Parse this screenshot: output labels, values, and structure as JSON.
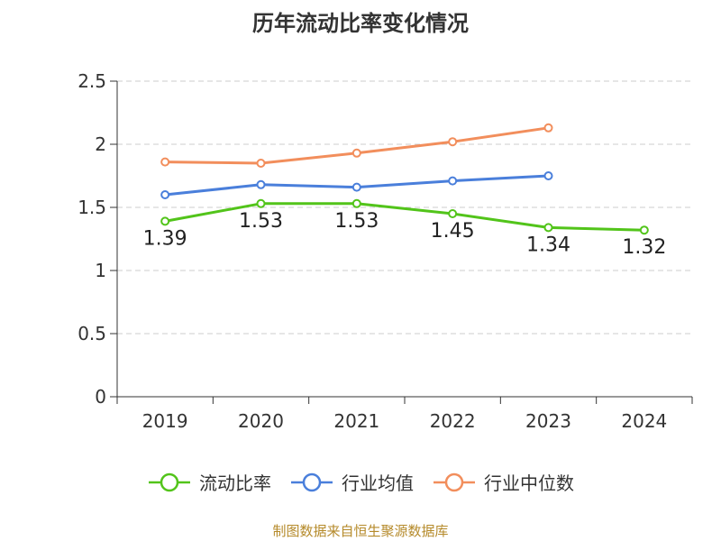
{
  "chart_data": {
    "type": "line",
    "title": "历年流动比率变化情况",
    "categories": [
      "2019",
      "2020",
      "2021",
      "2022",
      "2023",
      "2024"
    ],
    "ylim": [
      0,
      2.5
    ],
    "yticks": [
      0,
      0.5,
      1,
      1.5,
      2,
      2.5
    ],
    "ytick_labels": [
      "0",
      "0.5",
      "1",
      "1.5",
      "2",
      "2.5"
    ],
    "grid": true,
    "legend_position": "bottom",
    "series": [
      {
        "name": "流动比率",
        "color": "#52c41a",
        "values": [
          1.39,
          1.53,
          1.53,
          1.45,
          1.34,
          1.32
        ],
        "labels": [
          "1.39",
          "1.53",
          "1.53",
          "1.45",
          "1.34",
          "1.32"
        ],
        "show_labels": true
      },
      {
        "name": "行业均值",
        "color": "#4a7fdb",
        "values": [
          1.6,
          1.68,
          1.66,
          1.71,
          1.75,
          null
        ],
        "show_labels": false
      },
      {
        "name": "行业中位数",
        "color": "#f28e5c",
        "values": [
          1.86,
          1.85,
          1.93,
          2.02,
          2.13,
          null
        ],
        "show_labels": false
      }
    ]
  },
  "source_note": "制图数据来自恒生聚源数据库"
}
